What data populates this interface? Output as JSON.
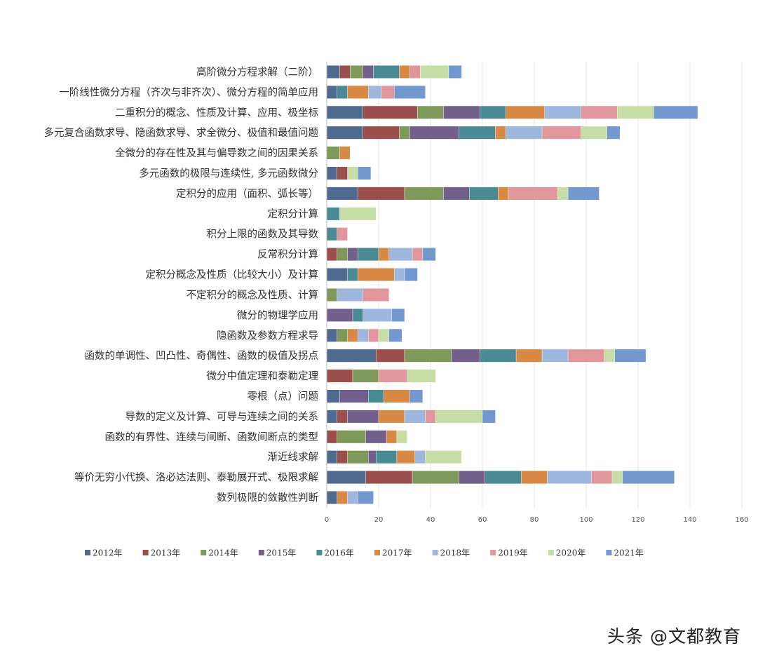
{
  "chart_data": {
    "type": "bar",
    "orientation": "horizontal",
    "stacked": true,
    "title": "",
    "xlabel": "",
    "ylabel": "",
    "xlim": [
      0,
      160
    ],
    "x_ticks": [
      0,
      20,
      40,
      60,
      80,
      100,
      120,
      140,
      160
    ],
    "grid": "vertical",
    "legend_position": "bottom",
    "categories": [
      "高阶微分方程求解（二阶）",
      "一阶线性微分方程（齐次与非齐次）、微分方程的简单应用",
      "二重积分的概念、性质及计算、应用、极坐标",
      "多元复合函数求导、隐函数求导、求全微分、极值和最值问题",
      "全微分的存在性及其与偏导数之间的因果关系",
      "多元函数的极限与连续性, 多元函数微分",
      "定积分的应用（面积、弧长等）",
      "定积分计算",
      "积分上限的函数及其导数",
      "反常积分计算",
      "定积分概念及性质（比较大小）及计算",
      "不定积分的概念及性质、计算",
      "微分的物理学应用",
      "隐函数及参数方程求导",
      "函数的单调性、凹凸性、奇偶性、函数的极值及拐点",
      "微分中值定理和泰勒定理",
      "零根（点）问题",
      "导数的定义及计算、可导与连续之间的关系",
      "函数的有界性、连续与间断、函数间断点的类型",
      "渐近线求解",
      "等价无穷小代换、洛必达法则、泰勒展开式、极限求解",
      "数列极限的敛散性判断"
    ],
    "series": [
      {
        "name": "2012年",
        "color": "#4F6A8F",
        "values": [
          5,
          4,
          14,
          14,
          0,
          4,
          12,
          0,
          0,
          0,
          8,
          0,
          0,
          4,
          19,
          0,
          5,
          4,
          0,
          4,
          15,
          4
        ]
      },
      {
        "name": "2013年",
        "color": "#9B4F4D",
        "values": [
          4,
          0,
          21,
          14,
          0,
          4,
          18,
          0,
          0,
          4,
          0,
          0,
          0,
          0,
          11,
          10,
          0,
          4,
          4,
          4,
          18,
          0
        ]
      },
      {
        "name": "2014年",
        "color": "#7E9959",
        "values": [
          5,
          0,
          10,
          4,
          5,
          0,
          15,
          0,
          0,
          4,
          0,
          4,
          0,
          4,
          18,
          10,
          0,
          0,
          11,
          8,
          18,
          0
        ]
      },
      {
        "name": "2015年",
        "color": "#725F8C",
        "values": [
          4,
          0,
          14,
          19,
          0,
          0,
          10,
          0,
          0,
          4,
          0,
          0,
          10,
          0,
          11,
          0,
          11,
          12,
          8,
          3,
          10,
          0
        ]
      },
      {
        "name": "2016年",
        "color": "#4A8A95",
        "values": [
          10,
          4,
          10,
          14,
          0,
          0,
          11,
          5,
          4,
          8,
          4,
          0,
          4,
          0,
          14,
          0,
          6,
          0,
          0,
          8,
          14,
          0
        ]
      },
      {
        "name": "2017年",
        "color": "#D88A45",
        "values": [
          4,
          8,
          15,
          4,
          4,
          0,
          4,
          0,
          0,
          4,
          14,
          0,
          0,
          4,
          10,
          0,
          10,
          10,
          4,
          7,
          10,
          4
        ]
      },
      {
        "name": "2018年",
        "color": "#9DB7DE",
        "values": [
          0,
          5,
          14,
          14,
          0,
          0,
          0,
          0,
          0,
          9,
          4,
          10,
          11,
          4,
          10,
          0,
          0,
          8,
          0,
          4,
          17,
          4
        ]
      },
      {
        "name": "2019年",
        "color": "#E0969A",
        "values": [
          4,
          5,
          14,
          15,
          0,
          0,
          19,
          0,
          4,
          4,
          0,
          10,
          0,
          4,
          14,
          11,
          0,
          4,
          0,
          0,
          8,
          0
        ]
      },
      {
        "name": "2020年",
        "color": "#C6DDA6",
        "values": [
          11,
          0,
          14,
          10,
          0,
          4,
          4,
          14,
          0,
          0,
          0,
          0,
          0,
          4,
          4,
          11,
          0,
          18,
          4,
          14,
          4,
          0
        ]
      },
      {
        "name": "2021年",
        "color": "#7397CF",
        "values": [
          5,
          12,
          17,
          5,
          0,
          5,
          12,
          0,
          0,
          5,
          5,
          0,
          5,
          5,
          12,
          0,
          5,
          5,
          0,
          0,
          20,
          6
        ]
      }
    ]
  },
  "watermark": "头条 @文都教育"
}
